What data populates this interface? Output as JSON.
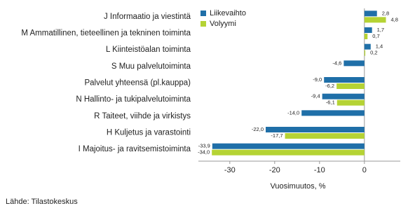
{
  "chart_data": {
    "type": "bar",
    "orientation": "horizontal",
    "categories": [
      "J Informaatio ja viestintä",
      "M Ammatillinen, tieteellinen ja tekninen toiminta",
      "L Kiinteistöalan toiminta",
      "S Muu palvelutoiminta",
      "Palvelut yhteensä (pl.kauppa)",
      "N Hallinto- ja tukipalvelutoiminta",
      "R Taiteet, viihde ja virkistys",
      "H Kuljetus ja varastointi",
      "I Majoitus- ja ravitsemistoiminta"
    ],
    "series": [
      {
        "name": "Liikevaihto",
        "color": "#1f6fa8",
        "values": [
          2.8,
          1.7,
          1.4,
          -4.6,
          -9.0,
          -9.4,
          -14.0,
          -22.0,
          -33.9
        ],
        "value_labels": [
          "2,8",
          "1,7",
          "1,4",
          "-4,6",
          "-9,0",
          "-9,4",
          "-14,0",
          "-22,0",
          "-33,9"
        ]
      },
      {
        "name": "Volyymi",
        "color": "#b5d334",
        "values": [
          4.8,
          0.7,
          0.2,
          null,
          -6.2,
          -6.1,
          null,
          -17.7,
          -34.0
        ],
        "value_labels": [
          "4,8",
          "0,7",
          "0,2",
          null,
          "-6,2",
          "-6,1",
          null,
          "-17,7",
          "-34,0"
        ]
      }
    ],
    "xlabel": "Vuosimuutos, %",
    "xlim": [
      -37,
      8
    ],
    "xticks": [
      -30,
      -20,
      -10,
      0
    ],
    "legend": "top-right",
    "source": "Lähde: Tilastokeskus"
  }
}
